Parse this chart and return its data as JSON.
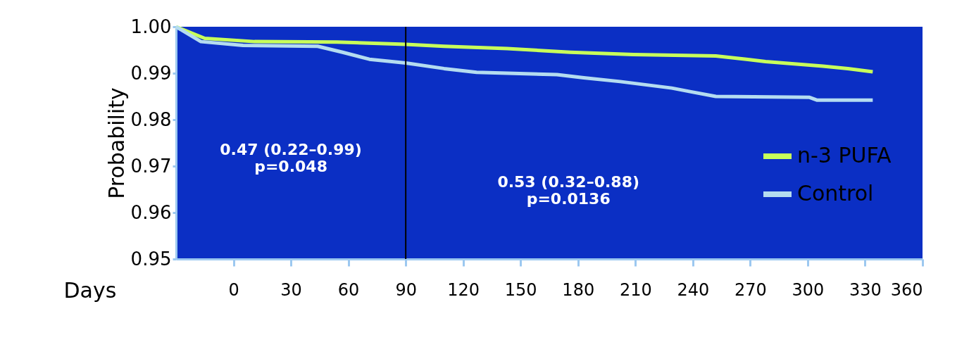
{
  "chart_data": {
    "type": "line",
    "xlabel": "Days",
    "ylabel": "Probability",
    "xlim": [
      -30,
      360
    ],
    "xticks": [
      0,
      30,
      60,
      90,
      120,
      150,
      180,
      210,
      240,
      270,
      300,
      330,
      360
    ],
    "ylim": [
      0.95,
      1.0
    ],
    "yticks": [
      {
        "value": 0.95,
        "label": "0.95"
      },
      {
        "value": 0.96,
        "label": "0.96"
      },
      {
        "value": 0.97,
        "label": "0.97"
      },
      {
        "value": 0.98,
        "label": "0.98"
      },
      {
        "value": 0.99,
        "label": "0.99"
      },
      {
        "value": 1.0,
        "label": "1.00"
      }
    ],
    "series": [
      {
        "name": "n-3 PUFA",
        "color": "#c8ff5a",
        "x": [
          -30,
          -15,
          11,
          54,
          90,
          110,
          143,
          176,
          209,
          252,
          268,
          278,
          308,
          321,
          334
        ],
        "values": [
          1.0,
          0.9975,
          0.9968,
          0.9967,
          0.9962,
          0.9958,
          0.9953,
          0.9945,
          0.994,
          0.9937,
          0.993,
          0.9925,
          0.9915,
          0.991,
          0.9903
        ]
      },
      {
        "name": "Control",
        "color": "#b4dcf0",
        "x": [
          -30,
          -17,
          5,
          44,
          57,
          71,
          90,
          110,
          127,
          169,
          183,
          202,
          229,
          239,
          252,
          301,
          305,
          334
        ],
        "values": [
          1.0,
          0.9968,
          0.996,
          0.9958,
          0.9945,
          0.993,
          0.9922,
          0.991,
          0.9902,
          0.9897,
          0.989,
          0.9882,
          0.9868,
          0.986,
          0.985,
          0.9848,
          0.9842,
          0.9842
        ]
      }
    ],
    "ref_lines": [
      {
        "axis": "x",
        "value": 90,
        "color": "#000000"
      }
    ],
    "annotations": [
      "0.47 (0.22–0.99)\np=0.048",
      "0.53 (0.32–0.88)\np=0.0136"
    ],
    "legend": "center right",
    "grid": false,
    "line_style": "solid",
    "marker": "none"
  }
}
